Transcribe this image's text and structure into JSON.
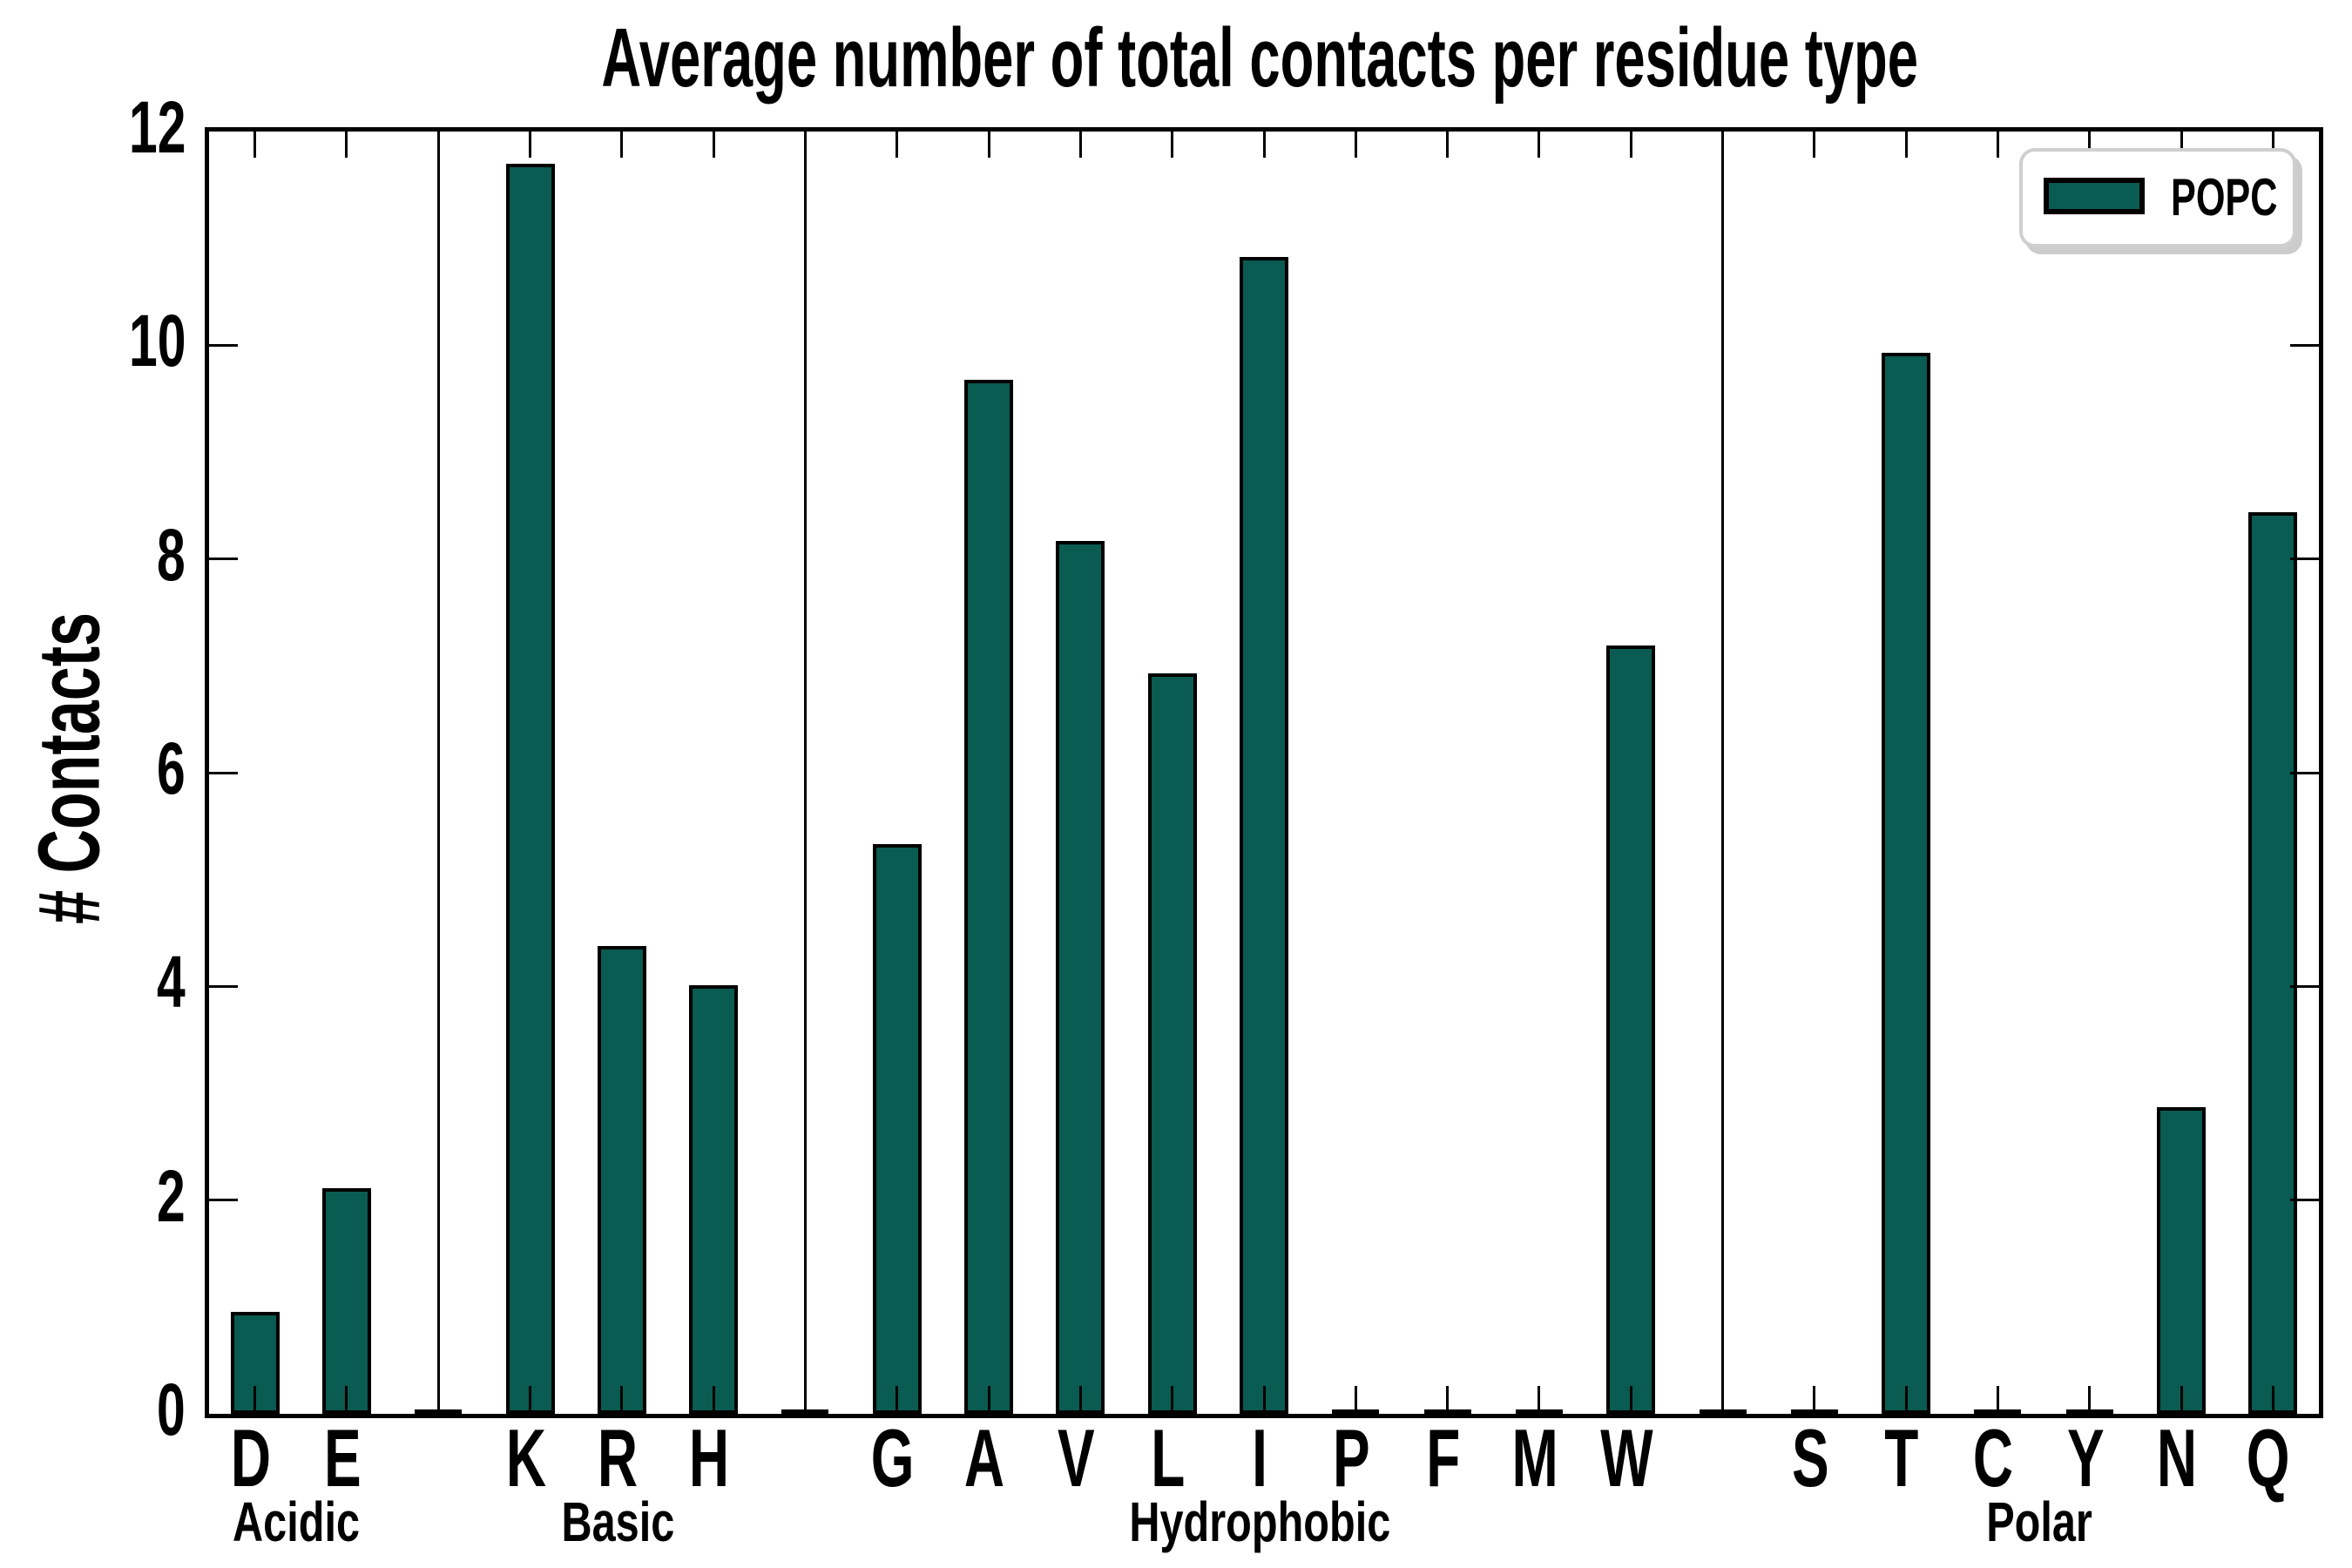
{
  "chart_data": {
    "type": "bar",
    "title": "Average number of total contacts per residue type",
    "ylabel": "# Contacts",
    "xlabel": "",
    "ylim": [
      0,
      12
    ],
    "yticks": [
      0,
      2,
      4,
      6,
      8,
      10,
      12
    ],
    "grid": false,
    "background_color": "#ffffff",
    "axis_color": "#000000",
    "bar_color": "#0A5B51",
    "bar_edge_color": "#000000",
    "spacer_value": 0.02,
    "legend": {
      "label": "POPC",
      "position": "upper right",
      "swatch_color": "#0A5B51",
      "border_color": "#cfcfcf"
    },
    "groups": [
      {
        "label": "Acidic",
        "categories": [
          "D",
          "E"
        ],
        "values": [
          0.95,
          2.11
        ]
      },
      {
        "label": "Basic",
        "categories": [
          "K",
          "R",
          "H"
        ],
        "values": [
          11.7,
          4.38,
          4.01
        ]
      },
      {
        "label": "Hydrophobic",
        "categories": [
          "G",
          "A",
          "V",
          "L",
          "I",
          "P",
          "F",
          "M",
          "W"
        ],
        "values": [
          5.33,
          9.68,
          8.17,
          6.93,
          10.83,
          0.02,
          0.02,
          0.02,
          7.19
        ]
      },
      {
        "label": "Polar",
        "categories": [
          "S",
          "T",
          "C",
          "Y",
          "N",
          "Q"
        ],
        "values": [
          0.02,
          9.93,
          0.02,
          0.02,
          2.87,
          8.44
        ]
      }
    ]
  }
}
